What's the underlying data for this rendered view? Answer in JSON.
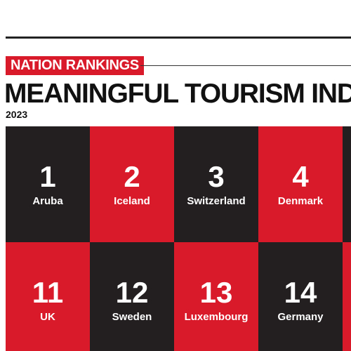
{
  "header": {
    "badge": "NATION RANKINGS",
    "title": "MEANINGFUL TOURISM INDEX",
    "year": "2023"
  },
  "colors": {
    "dark": "#231f20",
    "red": "#d91a2a",
    "text_on_tile": "#ffffff"
  },
  "rankings": [
    {
      "rank": "1",
      "country": "Aruba"
    },
    {
      "rank": "2",
      "country": "Iceland"
    },
    {
      "rank": "3",
      "country": "Switzerland"
    },
    {
      "rank": "4",
      "country": "Denmark"
    },
    {
      "rank": "11",
      "country": "UK"
    },
    {
      "rank": "12",
      "country": "Sweden"
    },
    {
      "rank": "13",
      "country": "Luxembourg"
    },
    {
      "rank": "14",
      "country": "Germany"
    }
  ]
}
